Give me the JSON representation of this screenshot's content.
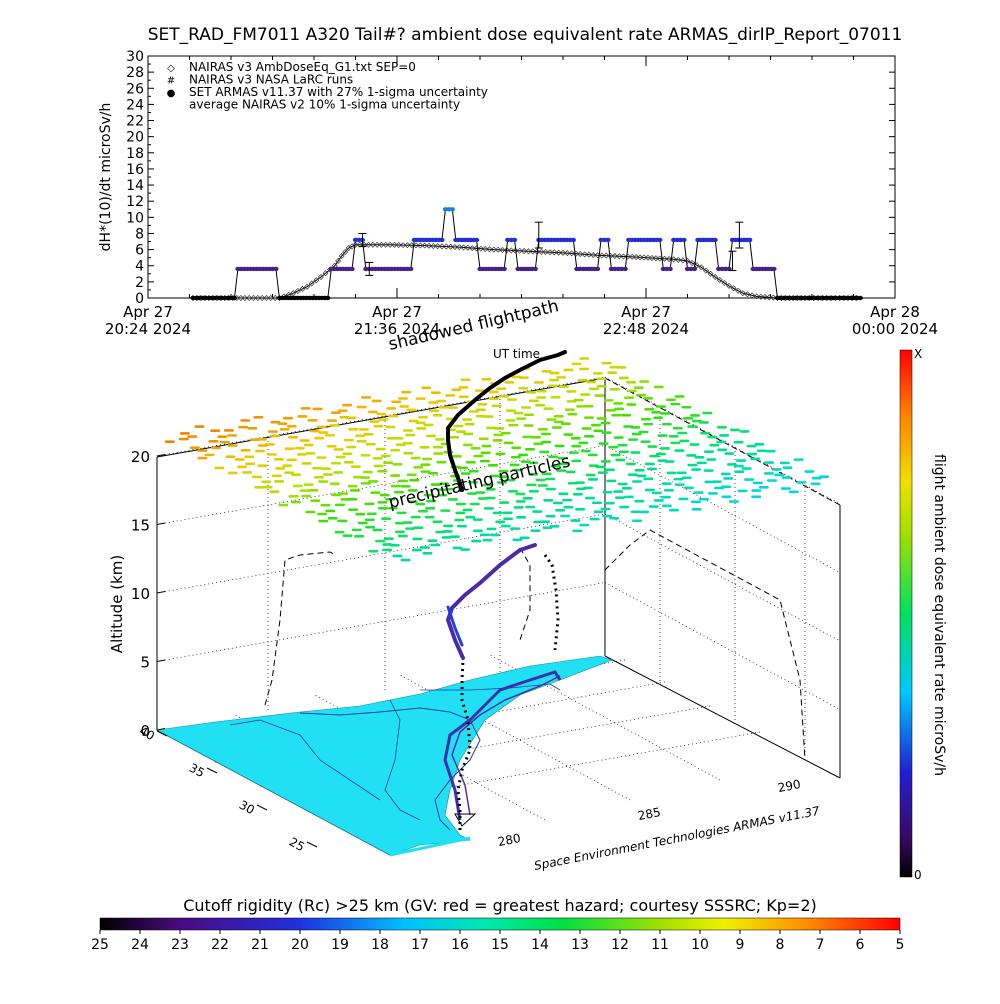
{
  "title": "SET_RAD_FM7011  A320 Tail#? ambient dose equivalent rate ARMAS_dirIP_Report_07011",
  "chart_data": [
    {
      "type": "line",
      "ylabel": "dH*(10)/dt microSv/h",
      "ylim": [
        0,
        30
      ],
      "yticks": [
        0,
        2,
        4,
        6,
        8,
        10,
        12,
        14,
        16,
        18,
        20,
        22,
        24,
        26,
        28,
        30
      ],
      "xticks": [
        {
          "t": 0,
          "line1": "Apr 27",
          "line2": "20:24 2024"
        },
        {
          "t": 72,
          "line1": "Apr 27",
          "line2": "21:36 2024"
        },
        {
          "t": 144,
          "line1": "Apr 27",
          "line2": "22:48 2024"
        },
        {
          "t": 216,
          "line1": "Apr 28",
          "line2": "00:00 2024"
        }
      ],
      "legend": [
        {
          "symbol": "◇",
          "label": "NAIRAS v3 AmbDoseEq_G1.txt SEP=0"
        },
        {
          "symbol": "#",
          "label": "NAIRAS v3 NASA LaRC runs"
        },
        {
          "symbol": "●",
          "color": "#1f3fd8",
          "label": "SET ARMAS v11.37 with 27% 1-sigma uncertainty"
        },
        {
          "symbol": "",
          "label": "average NAIRAS v2 10% 1-sigma uncertainty"
        }
      ],
      "series": [
        {
          "marker": "diamond",
          "points": [
            [
              13,
              0
            ],
            [
              28,
              0
            ],
            [
              38,
              0
            ],
            [
              42,
              0.6
            ],
            [
              46,
              1.4
            ],
            [
              50,
              2.6
            ],
            [
              54,
              4.0
            ],
            [
              56,
              5.2
            ],
            [
              58,
              6.2
            ],
            [
              60,
              6.6
            ],
            [
              65,
              6.6
            ],
            [
              70,
              6.6
            ],
            [
              80,
              6.5
            ],
            [
              90,
              6.3
            ],
            [
              100,
              6.0
            ],
            [
              110,
              5.8
            ],
            [
              120,
              5.6
            ],
            [
              130,
              5.3
            ],
            [
              140,
              5.1
            ],
            [
              148,
              4.9
            ],
            [
              152,
              4.8
            ],
            [
              156,
              4.6
            ],
            [
              160,
              3.8
            ],
            [
              164,
              2.6
            ],
            [
              168,
              1.5
            ],
            [
              172,
              0.6
            ],
            [
              176,
              0.2
            ],
            [
              182,
              0
            ],
            [
              190,
              0
            ],
            [
              200,
              0
            ],
            [
              206,
              0
            ]
          ]
        },
        {
          "marker": "dot",
          "points": [
            [
              13,
              0
            ],
            [
              25,
              0
            ],
            [
              26,
              3.6
            ],
            [
              37,
              3.6
            ],
            [
              38,
              0
            ],
            [
              52,
              0
            ],
            [
              53,
              3.6
            ],
            [
              59,
              3.6
            ],
            [
              60,
              7.2
            ],
            [
              62,
              7.2
            ],
            [
              63,
              3.6
            ],
            [
              76,
              3.6
            ],
            [
              77,
              7.2
            ],
            [
              85,
              7.2
            ],
            [
              86,
              11
            ],
            [
              88,
              11
            ],
            [
              89,
              7.2
            ],
            [
              95,
              7.2
            ],
            [
              96,
              3.6
            ],
            [
              103,
              3.6
            ],
            [
              104,
              7.2
            ],
            [
              106,
              7.2
            ],
            [
              107,
              3.6
            ],
            [
              112,
              3.6
            ],
            [
              113,
              7.2
            ],
            [
              123,
              7.2
            ],
            [
              124,
              3.6
            ],
            [
              130,
              3.6
            ],
            [
              131,
              7.2
            ],
            [
              133,
              7.2
            ],
            [
              134,
              3.6
            ],
            [
              138,
              3.6
            ],
            [
              139,
              7.2
            ],
            [
              148,
              7.2
            ],
            [
              149,
              3.6
            ],
            [
              151,
              3.6
            ],
            [
              152,
              7.2
            ],
            [
              155,
              7.2
            ],
            [
              156,
              3.6
            ],
            [
              158,
              3.6
            ],
            [
              159,
              7.2
            ],
            [
              164,
              7.2
            ],
            [
              165,
              3.6
            ],
            [
              168,
              3.6
            ],
            [
              169,
              7.2
            ],
            [
              174,
              7.2
            ],
            [
              175,
              3.6
            ],
            [
              181,
              3.6
            ],
            [
              182,
              0
            ],
            [
              206,
              0
            ]
          ]
        }
      ],
      "error_bars": [
        [
          62,
          7.2,
          0.8
        ],
        [
          64,
          3.6,
          0.8
        ],
        [
          113,
          7.8,
          1.6
        ],
        [
          169,
          4.6,
          1.2
        ],
        [
          171,
          7.8,
          1.6
        ]
      ]
    },
    {
      "type": "scatter3d",
      "zlabel": "Altitude (km)",
      "zticks": [
        0,
        5,
        10,
        15,
        20
      ],
      "lat_ticks": [
        "40",
        "35",
        "30",
        "25"
      ],
      "lon_ticks": [
        "280",
        "285",
        "290"
      ],
      "annotations": [
        "shadowed flightpath",
        "UT time",
        "precipitating particles"
      ],
      "credit": "Space Environment Technologies ARMAS v11.37",
      "colorbar": {
        "label": "flight ambient dose equivalent rate microSv/h",
        "max_label": "X",
        "min_label": "0"
      }
    },
    {
      "type": "colorbar",
      "label": "Cutoff rigidity (Rc) >25 km (GV: red = greatest hazard; courtesy SSSRC; Kp=2)",
      "ticks": [
        "25",
        "24",
        "23",
        "22",
        "21",
        "20",
        "19",
        "18",
        "17",
        "16",
        "15",
        "14",
        "13",
        "12",
        "11",
        "10",
        "9",
        "8",
        "7",
        "6",
        "5"
      ]
    }
  ],
  "colors": {
    "armas_dot": "#1f3fd8",
    "armas_low": "#4a1f8c",
    "ocean": "#22e0f4",
    "accent_red": "#ff2a00"
  }
}
